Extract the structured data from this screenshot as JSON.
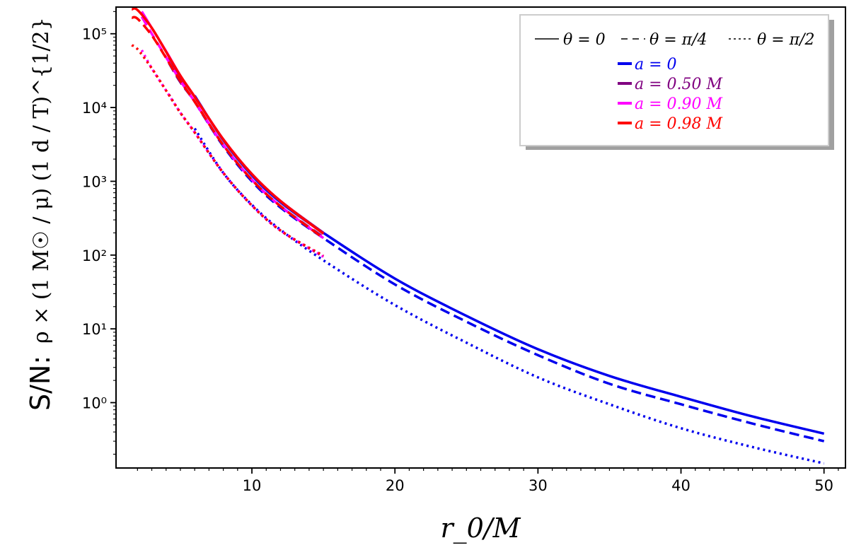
{
  "chart_data": {
    "type": "line",
    "title": "",
    "xlabel": "r_0/M",
    "ylabel_prefix": "S/N:",
    "ylabel_expr": "ρ × (1 M☉ / μ) (1 d / T)^{1/2}",
    "yscale": "log",
    "xlim": [
      0.5,
      51.5
    ],
    "ylim": [
      0.13,
      230000
    ],
    "x_ticks": [
      10,
      20,
      30,
      40,
      50
    ],
    "x_tick_labels": [
      "10",
      "20",
      "30",
      "40",
      "50"
    ],
    "y_ticks": [
      1,
      10,
      100,
      1000,
      10000,
      100000
    ],
    "y_tick_labels": [
      "10⁰",
      "10¹",
      "10²",
      "10³",
      "10⁴",
      "10⁵"
    ],
    "grid": false,
    "legend": {
      "placement": "top-right",
      "style_entries": [
        {
          "label": "θ = 0",
          "dash": "solid"
        },
        {
          "label": "θ = π/4",
          "dash": "dashed"
        },
        {
          "label": "θ = π/2",
          "dash": "dotted"
        }
      ],
      "spin_entries": [
        {
          "label": "a = 0",
          "color": "#0000ee"
        },
        {
          "label": "a = 0.50 M",
          "color": "#800080"
        },
        {
          "label": "a = 0.90 M",
          "color": "#ff00ff"
        },
        {
          "label": "a = 0.98 M",
          "color": "#ff0000"
        }
      ]
    },
    "series": [
      {
        "name": "a = 0, θ = 0",
        "color": "#0000ee",
        "dash": "solid",
        "x": [
          6,
          8,
          10,
          12,
          15,
          20,
          25,
          30,
          35,
          40,
          45,
          50
        ],
        "y": [
          14500,
          3600,
          1200,
          520,
          200,
          48,
          15,
          5.3,
          2.3,
          1.2,
          0.65,
          0.38
        ]
      },
      {
        "name": "a = 0, θ = π/4",
        "color": "#0000ee",
        "dash": "dashed",
        "x": [
          6,
          8,
          10,
          12,
          15,
          20,
          25,
          30,
          35,
          40,
          45,
          50
        ],
        "y": [
          12000,
          3000,
          1000,
          440,
          170,
          40,
          12.5,
          4.4,
          1.8,
          0.95,
          0.52,
          0.3
        ]
      },
      {
        "name": "a = 0, θ = π/2",
        "color": "#0000ee",
        "dash": "dotted",
        "x": [
          6,
          8,
          10,
          12,
          15,
          20,
          25,
          30,
          35,
          40,
          45,
          50
        ],
        "y": [
          5200,
          1300,
          480,
          220,
          85,
          21,
          6.5,
          2.2,
          0.95,
          0.45,
          0.25,
          0.15
        ]
      },
      {
        "name": "a = 0.50 M, θ = 0",
        "color": "#800080",
        "dash": "solid",
        "x": [
          4.2,
          5,
          6,
          8,
          10,
          12,
          15
        ],
        "y": [
          48000,
          26000,
          14000,
          3700,
          1250,
          540,
          200
        ]
      },
      {
        "name": "a = 0.50 M, θ = π/4",
        "color": "#800080",
        "dash": "dashed",
        "x": [
          4.2,
          5,
          6,
          8,
          10,
          12,
          15
        ],
        "y": [
          40000,
          22000,
          12000,
          3100,
          1050,
          460,
          175
        ]
      },
      {
        "name": "a = 0.50 M, θ = π/2",
        "color": "#800080",
        "dash": "dotted",
        "x": [
          4.2,
          5,
          6,
          8,
          10,
          12,
          15
        ],
        "y": [
          15000,
          8500,
          4600,
          1300,
          470,
          215,
          95
        ]
      },
      {
        "name": "a = 0.90 M, θ = 0",
        "color": "#ff00ff",
        "dash": "solid",
        "x": [
          2.3,
          3,
          4,
          5,
          6,
          8,
          10,
          12,
          15
        ],
        "y": [
          200000,
          120000,
          58000,
          27000,
          14000,
          3700,
          1250,
          540,
          195
        ]
      },
      {
        "name": "a = 0.90 M, θ = π/4",
        "color": "#ff00ff",
        "dash": "dashed",
        "x": [
          2.3,
          3,
          4,
          5,
          6,
          8,
          10,
          12,
          15
        ],
        "y": [
          170000,
          100000,
          48000,
          23000,
          12000,
          3100,
          1050,
          460,
          170
        ]
      },
      {
        "name": "a = 0.90 M, θ = π/2",
        "color": "#ff00ff",
        "dash": "dotted",
        "x": [
          2.3,
          3,
          4,
          5,
          6,
          8,
          10,
          12,
          15
        ],
        "y": [
          60000,
          34000,
          17000,
          8500,
          4600,
          1300,
          470,
          215,
          95
        ]
      },
      {
        "name": "a = 0.98 M, θ = 0",
        "color": "#ff0000",
        "dash": "solid",
        "x": [
          1.6,
          2,
          3,
          4,
          5,
          6,
          8,
          10,
          12,
          15
        ],
        "y": [
          215000,
          210000,
          120000,
          57000,
          27000,
          14000,
          3700,
          1250,
          540,
          195
        ]
      },
      {
        "name": "a = 0.98 M, θ = π/4",
        "color": "#ff0000",
        "dash": "dashed",
        "x": [
          1.6,
          2,
          3,
          4,
          5,
          6,
          8,
          10,
          12,
          15
        ],
        "y": [
          165000,
          160000,
          95000,
          47000,
          23000,
          12000,
          3100,
          1050,
          460,
          170
        ]
      },
      {
        "name": "a = 0.98 M, θ = π/2",
        "color": "#ff0000",
        "dash": "dotted",
        "x": [
          1.6,
          2,
          3,
          4,
          5,
          6,
          8,
          10,
          12,
          15
        ],
        "y": [
          70000,
          62000,
          34000,
          17000,
          8500,
          4600,
          1300,
          470,
          215,
          98
        ]
      }
    ]
  }
}
